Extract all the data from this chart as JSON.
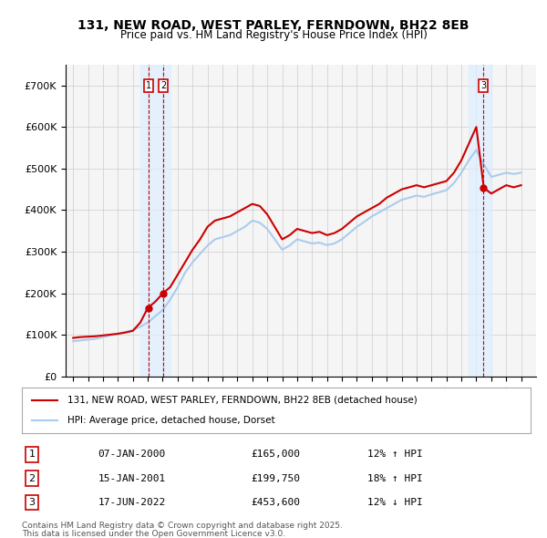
{
  "title": "131, NEW ROAD, WEST PARLEY, FERNDOWN, BH22 8EB",
  "subtitle": "Price paid vs. HM Land Registry's House Price Index (HPI)",
  "red_label": "131, NEW ROAD, WEST PARLEY, FERNDOWN, BH22 8EB (detached house)",
  "blue_label": "HPI: Average price, detached house, Dorset",
  "transactions": [
    {
      "num": 1,
      "date": "07-JAN-2000",
      "price": 165000,
      "pct": "12%",
      "dir": "↑",
      "year": 2000.03
    },
    {
      "num": 2,
      "date": "15-JAN-2001",
      "price": 199750,
      "pct": "18%",
      "dir": "↑",
      "year": 2001.04
    },
    {
      "num": 3,
      "date": "17-JUN-2022",
      "price": 453600,
      "pct": "12%",
      "dir": "↓",
      "year": 2022.46
    }
  ],
  "footnote1": "Contains HM Land Registry data © Crown copyright and database right 2025.",
  "footnote2": "This data is licensed under the Open Government Licence v3.0.",
  "ylim": [
    0,
    750000
  ],
  "yticks": [
    0,
    100000,
    200000,
    300000,
    400000,
    500000,
    600000,
    700000
  ],
  "xlim_start": 1994.5,
  "xlim_end": 2026.0,
  "red_color": "#cc0000",
  "blue_color": "#aaccee",
  "bg_color": "#f5f5f5",
  "grid_color": "#cccccc",
  "highlight_color": "#ddeeff"
}
